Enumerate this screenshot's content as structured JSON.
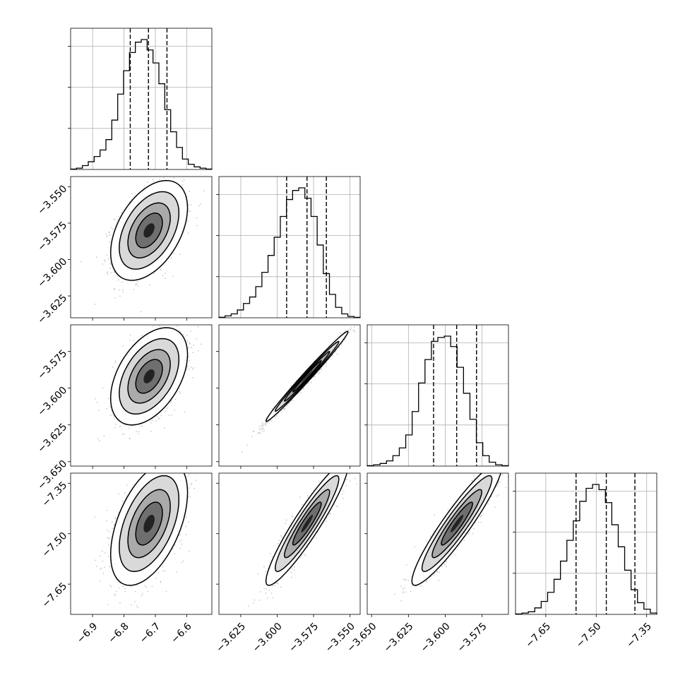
{
  "chart_data": {
    "type": "corner",
    "parameters": 4,
    "colors": {
      "line": "#000000",
      "grid": "#b0b0b0",
      "points": "#7f7f7f"
    },
    "grid": true,
    "axes_ranges": [
      [
        -6.97,
        -6.52
      ],
      [
        -3.64,
        -3.543
      ],
      [
        -3.653,
        -3.557
      ],
      [
        -7.74,
        -7.32
      ]
    ],
    "ticks": [
      {
        "values": [
          -6.9,
          -6.8,
          -6.7,
          -6.6
        ],
        "labels": [
          "−6.9",
          "−6.8",
          "−6.7",
          "−6.6"
        ]
      },
      {
        "values": [
          -3.625,
          -3.6,
          -3.575,
          -3.55
        ],
        "labels": [
          "−3.625",
          "−3.600",
          "−3.575",
          "−3.550"
        ]
      },
      {
        "values": [
          -3.65,
          -3.625,
          -3.6,
          -3.575
        ],
        "labels": [
          "−3.650",
          "−3.625",
          "−3.600",
          "−3.575"
        ]
      },
      {
        "values": [
          -7.65,
          -7.5,
          -7.35
        ],
        "labels": [
          "−7.65",
          "−7.50",
          "−7.35"
        ]
      }
    ],
    "quantiles": [
      [
        -6.78,
        -6.722,
        -6.663
      ],
      [
        -3.5935,
        -3.5795,
        -3.5662
      ],
      [
        -3.6079,
        -3.5922,
        -3.5787
      ],
      [
        -7.56,
        -7.47,
        -7.385
      ]
    ],
    "histograms": [
      {
        "values": [
          0.3,
          1,
          3,
          6,
          10,
          15,
          23,
          38,
          58,
          76,
          90,
          98,
          100,
          92,
          82,
          66,
          46,
          29,
          17,
          8,
          4,
          2,
          1,
          0.3
        ]
      },
      {
        "values": [
          0.4,
          1.5,
          3,
          6,
          11,
          16,
          24,
          35,
          48,
          62,
          78,
          91,
          98,
          100,
          92,
          78,
          56,
          34,
          18,
          8,
          3,
          1,
          0.3
        ]
      },
      {
        "values": [
          0.3,
          1,
          2,
          4,
          8,
          14,
          24,
          42,
          64,
          82,
          96,
          99,
          100,
          92,
          76,
          56,
          36,
          18,
          8,
          3,
          1,
          0.3
        ]
      },
      {
        "values": [
          0.3,
          1,
          2,
          5,
          10,
          17,
          27,
          41,
          57,
          72,
          87,
          97,
          100,
          96,
          86,
          69,
          52,
          34,
          19,
          9,
          4,
          1
        ]
      }
    ],
    "pairs": [
      {
        "row": 1,
        "col": 0,
        "mean": [
          -6.72,
          -3.58
        ],
        "sd": [
          0.05,
          0.014
        ],
        "rho": 0.45
      },
      {
        "row": 2,
        "col": 0,
        "mean": [
          -6.72,
          -3.592
        ],
        "sd": [
          0.05,
          0.0135
        ],
        "rho": 0.45
      },
      {
        "row": 2,
        "col": 1,
        "mean": [
          -3.5795,
          -3.592
        ],
        "sd": [
          0.0115,
          0.0125
        ],
        "rho": 0.99
      },
      {
        "row": 3,
        "col": 0,
        "mean": [
          -6.72,
          -7.47
        ],
        "sd": [
          0.05,
          0.075
        ],
        "rho": 0.5
      },
      {
        "row": 3,
        "col": 1,
        "mean": [
          -3.5795,
          -7.47
        ],
        "sd": [
          0.0115,
          0.075
        ],
        "rho": 0.93
      },
      {
        "row": 3,
        "col": 2,
        "mean": [
          -3.592,
          -7.47
        ],
        "sd": [
          0.0125,
          0.075
        ],
        "rho": 0.93
      }
    ]
  }
}
